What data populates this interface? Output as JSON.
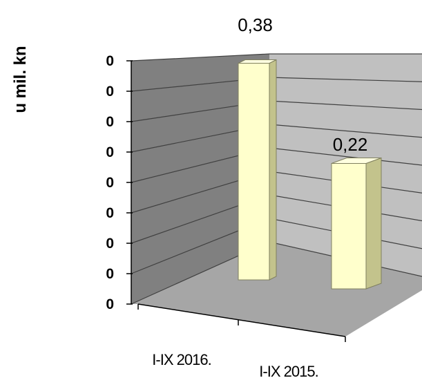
{
  "chart_data": {
    "type": "bar",
    "categories": [
      "I-IX 2016.",
      "I-IX 2015."
    ],
    "values": [
      0.38,
      0.22
    ],
    "data_labels": [
      "0,38",
      "0,22"
    ],
    "ylabel": "u mil. kn",
    "y_tick_labels": [
      "0",
      "0",
      "0",
      "0",
      "0",
      "0",
      "0",
      "0",
      "0"
    ],
    "ylim": [
      0,
      0.4
    ],
    "style": "3d-column",
    "grid": true,
    "colors": {
      "bar_front": "#ffffcc",
      "bar_side": "#c3c38c",
      "bar_top": "#ffffe0",
      "bar_edge": "#7f7f5f",
      "back_wall_left": "#808080",
      "back_wall_right": "#c0c0c0",
      "floor": "#a6a6a6",
      "gridline": "#404040"
    }
  }
}
